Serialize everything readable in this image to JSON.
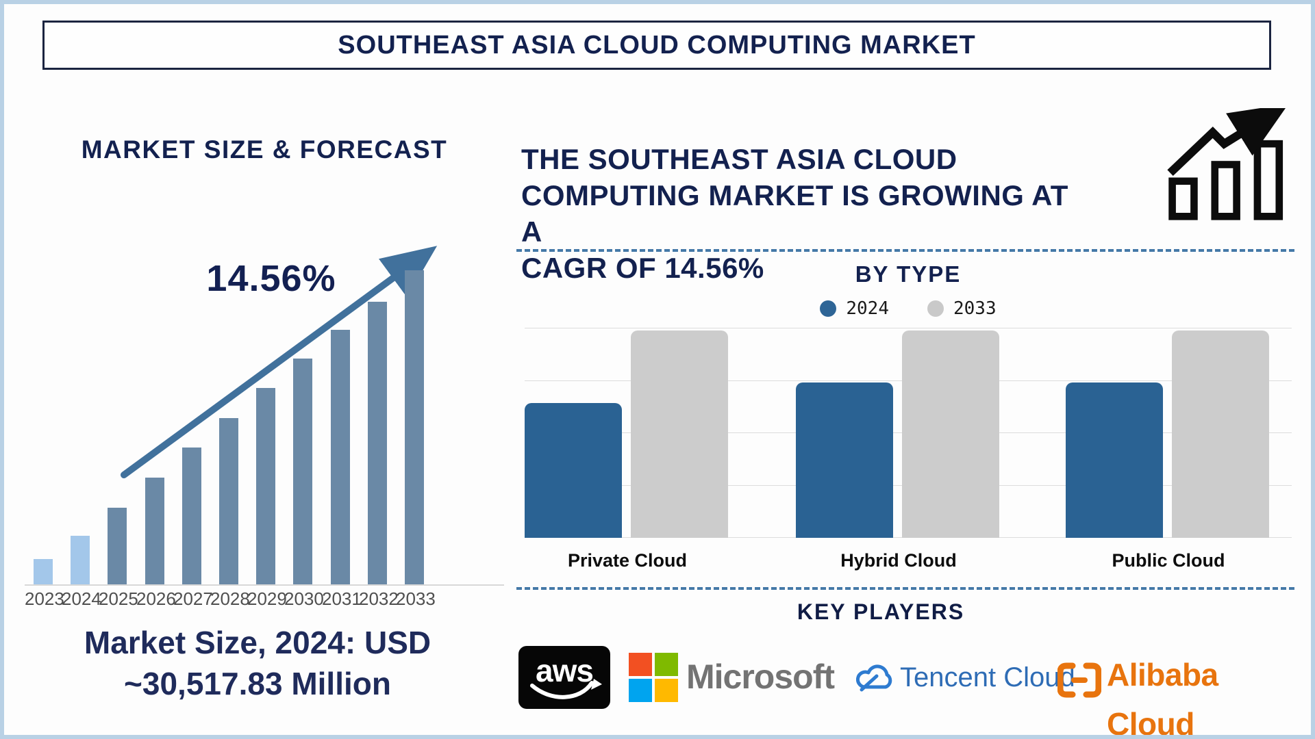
{
  "title": "SOUTHEAST ASIA CLOUD COMPUTING MARKET",
  "left_panel": {
    "heading": "MARKET SIZE & FORECAST",
    "cagr_annotation": "14.56%",
    "caption_lines": [
      "Market Size, 2024: USD",
      "~30,517.83 Million"
    ]
  },
  "right_panel": {
    "headline_lines": [
      "THE SOUTHEAST ASIA CLOUD",
      "COMPUTING MARKET IS GROWING AT A",
      "CAGR OF 14.56%"
    ],
    "by_type_heading": "BY TYPE",
    "key_players_heading": "KEY PLAYERS",
    "legend": [
      {
        "label": "2024",
        "color": "#2e6596"
      },
      {
        "label": "2033",
        "color": "#c9c9c9"
      }
    ]
  },
  "key_players": [
    {
      "name": "aws"
    },
    {
      "name": "Microsoft"
    },
    {
      "name": "Tencent Cloud"
    },
    {
      "name": "Alibaba Cloud"
    }
  ],
  "brand_colors": {
    "microsoft_squares": [
      "#f25022",
      "#7fba00",
      "#00a4ef",
      "#ffb900"
    ],
    "microsoft_text": "#737373",
    "tencent_blue": "#2e6cb5",
    "alibaba_orange": "#e8740e",
    "aws_black": "#060606"
  },
  "accent_colors": {
    "navy_text": "#13214f",
    "arrow_blue": "#41719c",
    "dashed_line": "#4579a8",
    "frame_border": "#b9d1e5"
  },
  "chart_data": [
    {
      "type": "bar",
      "title": "Market Size & Forecast",
      "categories": [
        "2023",
        "2024",
        "2025",
        "2026",
        "2027",
        "2028",
        "2029",
        "2030",
        "2031",
        "2032",
        "2033"
      ],
      "values": [
        8,
        15.5,
        24.5,
        34,
        43.5,
        53,
        62.5,
        72,
        81,
        90,
        100
      ],
      "unit": "relative bar height, % of 2033 bar (no value axis shown)",
      "annotation": "14.56%",
      "known_point": "2024 = USD ~30,517.83 Million",
      "colors": {
        "2023_2024_bars": "#a3c7ea",
        "2025_2033_bars": "#6a89a6"
      },
      "xlabel": "",
      "ylabel": "",
      "grid": false,
      "legend": false
    },
    {
      "type": "bar",
      "title": "BY TYPE",
      "categories": [
        "Private Cloud",
        "Hybrid Cloud",
        "Public Cloud"
      ],
      "series": [
        {
          "name": "2024",
          "color": "#2a6293",
          "values": [
            65,
            75,
            75
          ]
        },
        {
          "name": "2033",
          "color": "#cccccc",
          "values": [
            100,
            100,
            100
          ]
        }
      ],
      "unit": "relative bar height, % of 2033 bars (no value axis shown)",
      "grid": true,
      "gridlines": 5,
      "legend_position": "top"
    }
  ]
}
